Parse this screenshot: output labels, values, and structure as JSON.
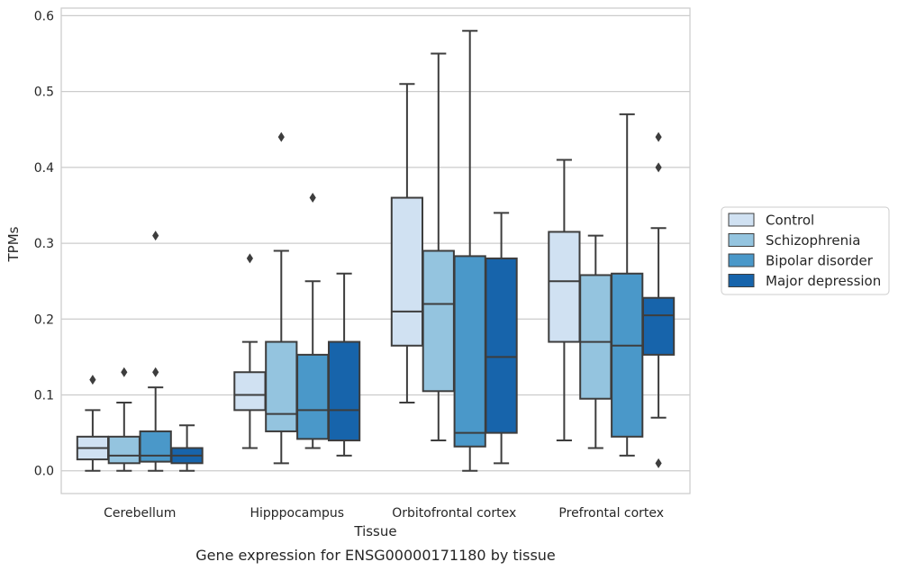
{
  "chart_data": {
    "type": "box",
    "title": "",
    "caption": "Gene expression for ENSG00000171180 by tissue",
    "xlabel": "Tissue",
    "ylabel": "TPMs",
    "ylim": [
      -0.03,
      0.61
    ],
    "yticks": [
      "0.0",
      "0.1",
      "0.2",
      "0.3",
      "0.4",
      "0.5",
      "0.6"
    ],
    "grid": "horizontal",
    "legend_position": "right",
    "categories": [
      "Cerebellum",
      "Hipppocampus",
      "Orbitofrontal cortex",
      "Prefrontal cortex"
    ],
    "series": [
      {
        "name": "Control",
        "color": "#d0e1f2",
        "boxes": [
          {
            "whislo": 0.0,
            "q1": 0.015,
            "med": 0.03,
            "q3": 0.045,
            "whishi": 0.08,
            "fliers": [
              0.12
            ]
          },
          {
            "whislo": 0.03,
            "q1": 0.08,
            "med": 0.1,
            "q3": 0.13,
            "whishi": 0.17,
            "fliers": [
              0.28
            ]
          },
          {
            "whislo": 0.09,
            "q1": 0.165,
            "med": 0.21,
            "q3": 0.36,
            "whishi": 0.51,
            "fliers": []
          },
          {
            "whislo": 0.04,
            "q1": 0.17,
            "med": 0.25,
            "q3": 0.315,
            "whishi": 0.41,
            "fliers": []
          }
        ]
      },
      {
        "name": "Schizophrenia",
        "color": "#94c4df",
        "boxes": [
          {
            "whislo": 0.0,
            "q1": 0.01,
            "med": 0.02,
            "q3": 0.045,
            "whishi": 0.09,
            "fliers": [
              0.13
            ]
          },
          {
            "whislo": 0.01,
            "q1": 0.052,
            "med": 0.075,
            "q3": 0.17,
            "whishi": 0.29,
            "fliers": [
              0.44
            ]
          },
          {
            "whislo": 0.04,
            "q1": 0.105,
            "med": 0.22,
            "q3": 0.29,
            "whishi": 0.55,
            "fliers": []
          },
          {
            "whislo": 0.03,
            "q1": 0.095,
            "med": 0.17,
            "q3": 0.258,
            "whishi": 0.31,
            "fliers": []
          }
        ]
      },
      {
        "name": "Bipolar disorder",
        "color": "#4a98c9",
        "boxes": [
          {
            "whislo": 0.0,
            "q1": 0.012,
            "med": 0.02,
            "q3": 0.052,
            "whishi": 0.11,
            "fliers": [
              0.13,
              0.31
            ]
          },
          {
            "whislo": 0.03,
            "q1": 0.042,
            "med": 0.08,
            "q3": 0.153,
            "whishi": 0.25,
            "fliers": [
              0.36
            ]
          },
          {
            "whislo": 0.0,
            "q1": 0.032,
            "med": 0.05,
            "q3": 0.283,
            "whishi": 0.58,
            "fliers": []
          },
          {
            "whislo": 0.02,
            "q1": 0.045,
            "med": 0.165,
            "q3": 0.26,
            "whishi": 0.47,
            "fliers": []
          }
        ]
      },
      {
        "name": "Major depression",
        "color": "#1764ab",
        "boxes": [
          {
            "whislo": 0.0,
            "q1": 0.01,
            "med": 0.02,
            "q3": 0.03,
            "whishi": 0.06,
            "fliers": []
          },
          {
            "whislo": 0.02,
            "q1": 0.04,
            "med": 0.08,
            "q3": 0.17,
            "whishi": 0.26,
            "fliers": []
          },
          {
            "whislo": 0.01,
            "q1": 0.05,
            "med": 0.15,
            "q3": 0.28,
            "whishi": 0.34,
            "fliers": []
          },
          {
            "whislo": 0.07,
            "q1": 0.153,
            "med": 0.205,
            "q3": 0.228,
            "whishi": 0.32,
            "fliers": [
              0.44,
              0.4,
              0.01
            ]
          }
        ]
      }
    ]
  }
}
